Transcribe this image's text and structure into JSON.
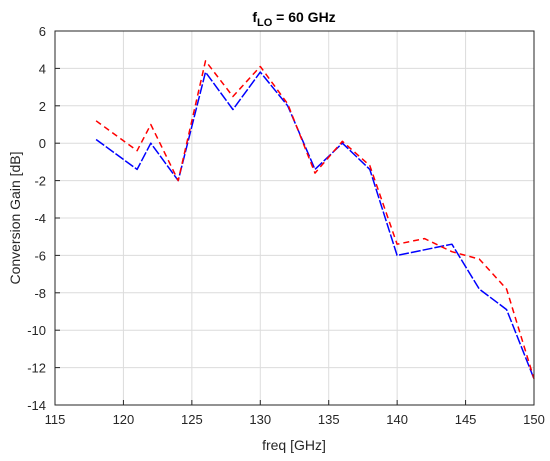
{
  "chart_data": {
    "type": "line",
    "title": {
      "main": "f",
      "sub": "LO",
      "rest": " = 60 GHz"
    },
    "xlabel": "freq [GHz]",
    "ylabel": "Conversion Gain [dB]",
    "xlim": [
      115,
      150
    ],
    "ylim": [
      -14,
      6
    ],
    "xticks": [
      115,
      120,
      125,
      130,
      135,
      140,
      145,
      150
    ],
    "yticks": [
      -14,
      -12,
      -10,
      -8,
      -6,
      -4,
      -2,
      0,
      2,
      4,
      6
    ],
    "grid": true,
    "series": [
      {
        "color": "#0000ff",
        "dash": "solid-dash",
        "x": [
          118,
          121,
          122,
          124,
          126,
          128,
          130,
          132,
          134,
          136,
          138,
          140,
          144,
          146,
          148,
          150
        ],
        "y": [
          0.2,
          -1.4,
          0.0,
          -2.0,
          3.8,
          1.8,
          3.8,
          2.0,
          -1.4,
          0.0,
          -1.4,
          -6.0,
          -5.4,
          -7.8,
          -8.9,
          -12.6
        ]
      },
      {
        "color": "#ff0000",
        "dash": "dashed",
        "x": [
          118,
          121,
          122,
          124,
          126,
          128,
          130,
          132,
          134,
          136,
          138,
          140,
          142,
          144,
          146,
          148,
          150
        ],
        "y": [
          1.2,
          -0.4,
          1.0,
          -2.0,
          4.4,
          2.5,
          4.1,
          2.1,
          -1.6,
          0.1,
          -1.2,
          -5.4,
          -5.1,
          -5.8,
          -6.2,
          -7.8,
          -12.6
        ]
      }
    ]
  }
}
